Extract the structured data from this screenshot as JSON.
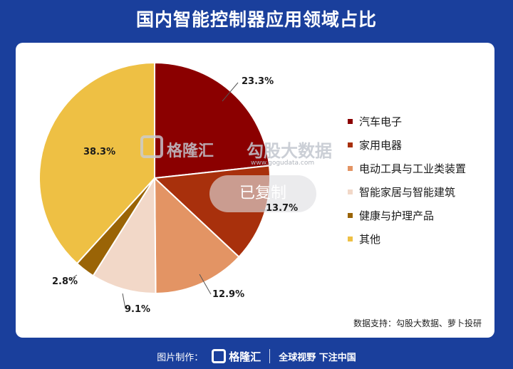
{
  "title": "国内智能控制器应用领域占比",
  "chart_data": {
    "type": "pie",
    "title": "国内智能控制器应用领域占比",
    "slices": [
      {
        "label": "汽车电子",
        "value": 23.3,
        "value_label": "23.3%",
        "color": "#8b0000"
      },
      {
        "label": "家用电器",
        "value": 13.7,
        "value_label": "13.7%",
        "color": "#a8300c"
      },
      {
        "label": "电动工具与工业类装置",
        "value": 12.9,
        "value_label": "12.9%",
        "color": "#e39464"
      },
      {
        "label": "智能家居与智能建筑",
        "value": 9.1,
        "value_label": "9.1%",
        "color": "#f2d8c8"
      },
      {
        "label": "健康与护理产品",
        "value": 2.8,
        "value_label": "2.8%",
        "color": "#9a6406"
      },
      {
        "label": "其他",
        "value": 38.3,
        "value_label": "38.3%",
        "color": "#eec044"
      }
    ],
    "legend_position": "right"
  },
  "source": "数据支持：勾股大数据、萝卜投研",
  "watermark": {
    "brand": "格隆汇",
    "text": "勾股大数据",
    "url": "www.gogudata.com",
    "overlay": "已复制"
  },
  "footer": {
    "label": "图片制作：",
    "brand": "格隆汇",
    "slogan": "全球视野 下注中国"
  }
}
